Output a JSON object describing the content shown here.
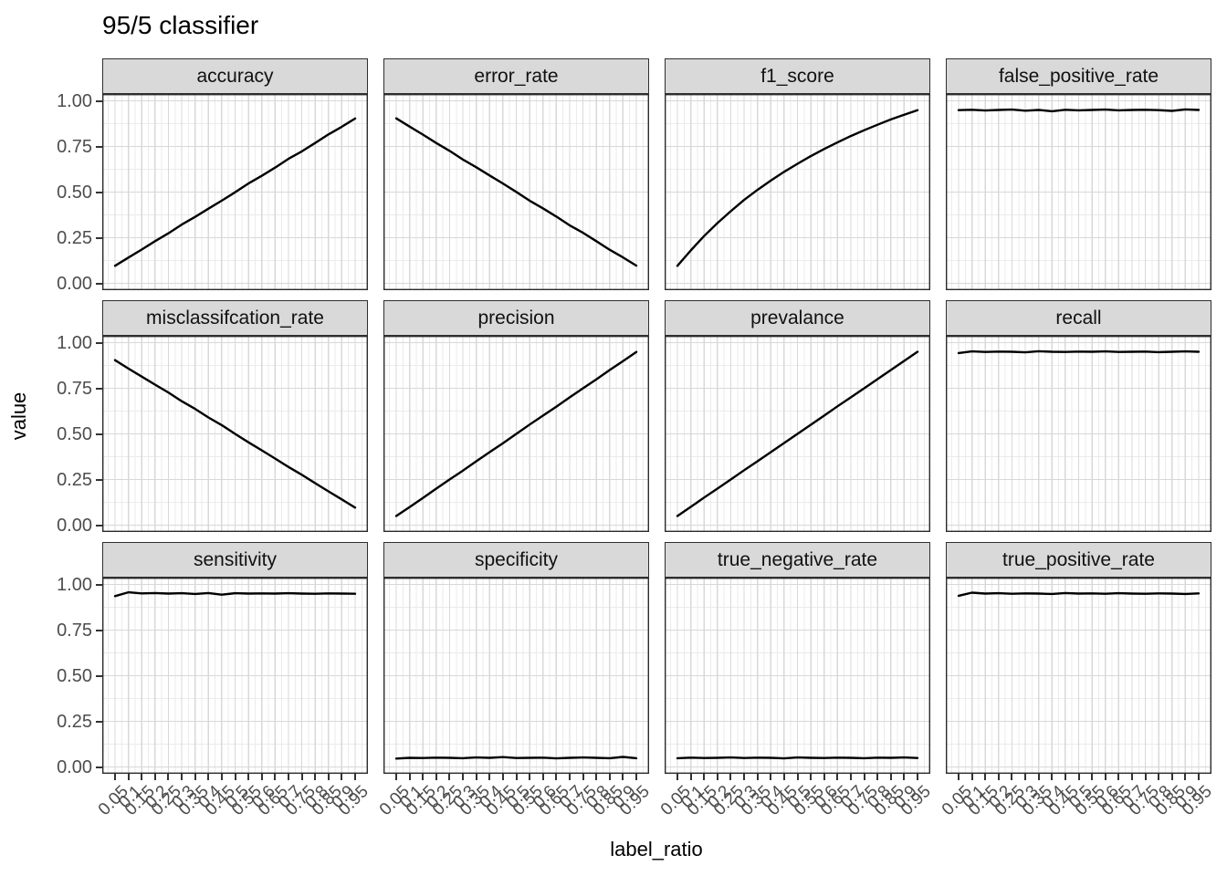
{
  "title": "95/5 classifier",
  "axes": {
    "x_label": "label_ratio",
    "y_label": "value",
    "y_tick_labels": [
      "1.00",
      "0.75",
      "0.50",
      "0.25",
      "0.00"
    ],
    "x_tick_labels": [
      "0.05",
      "0.1",
      "0.15",
      "0.2",
      "0.25",
      "0.3",
      "0.35",
      "0.4",
      "0.45",
      "0.5",
      "0.55",
      "0.6",
      "0.65",
      "0.7",
      "0.75",
      "0.8",
      "0.85",
      "0.9",
      "0.95"
    ]
  },
  "colors": {
    "line": "#000000",
    "strip_fill": "#D9D9D9",
    "strip_border": "#2F2F2F",
    "panel_border": "#2B2B2B",
    "panel_background": "#FFFFFF",
    "grid_major": "#D8D8D8",
    "grid_minor": "#EBEBEB",
    "tick_mark": "#333333",
    "tick_label": "#4D4D4D"
  },
  "chart_data": {
    "type": "line",
    "layout": "facet_wrap 3 rows x 4 cols, shared axes",
    "title": "95/5 classifier",
    "xlabel": "label_ratio",
    "ylabel": "value",
    "xlim": [
      0.05,
      0.95
    ],
    "ylim": [
      0,
      1
    ],
    "grid": true,
    "legend": false,
    "y_major_ticks": [
      1.0,
      0.75,
      0.5,
      0.25,
      0.0
    ],
    "x": [
      0.05,
      0.1,
      0.15,
      0.2,
      0.25,
      0.3,
      0.35,
      0.4,
      0.45,
      0.5,
      0.55,
      0.6,
      0.65,
      0.7,
      0.75,
      0.8,
      0.85,
      0.9,
      0.95
    ],
    "facets": [
      {
        "label": "accuracy",
        "values": [
          0.096,
          0.141,
          0.185,
          0.231,
          0.274,
          0.322,
          0.364,
          0.409,
          0.453,
          0.499,
          0.547,
          0.589,
          0.634,
          0.682,
          0.723,
          0.769,
          0.816,
          0.858,
          0.903
        ]
      },
      {
        "label": "error_rate",
        "values": [
          0.904,
          0.859,
          0.815,
          0.769,
          0.726,
          0.678,
          0.636,
          0.591,
          0.547,
          0.501,
          0.453,
          0.411,
          0.366,
          0.318,
          0.277,
          0.231,
          0.184,
          0.142,
          0.097
        ]
      },
      {
        "label": "f1_score",
        "values": [
          0.096,
          0.18,
          0.259,
          0.33,
          0.395,
          0.457,
          0.512,
          0.563,
          0.611,
          0.655,
          0.697,
          0.736,
          0.772,
          0.807,
          0.839,
          0.869,
          0.898,
          0.924,
          0.949
        ]
      },
      {
        "label": "false_positive_rate",
        "values": [
          0.949,
          0.951,
          0.947,
          0.95,
          0.952,
          0.946,
          0.95,
          0.943,
          0.951,
          0.948,
          0.95,
          0.952,
          0.948,
          0.95,
          0.951,
          0.949,
          0.945,
          0.953,
          0.95
        ]
      },
      {
        "label": "misclassifcation_rate",
        "values": [
          0.904,
          0.858,
          0.814,
          0.77,
          0.727,
          0.679,
          0.637,
          0.59,
          0.548,
          0.5,
          0.454,
          0.41,
          0.365,
          0.319,
          0.276,
          0.23,
          0.185,
          0.141,
          0.096
        ]
      },
      {
        "label": "precision",
        "values": [
          0.05,
          0.099,
          0.149,
          0.2,
          0.25,
          0.299,
          0.35,
          0.4,
          0.449,
          0.5,
          0.551,
          0.6,
          0.649,
          0.7,
          0.75,
          0.799,
          0.85,
          0.899,
          0.949
        ]
      },
      {
        "label": "prevalance",
        "values": [
          0.05,
          0.1,
          0.151,
          0.2,
          0.25,
          0.301,
          0.35,
          0.4,
          0.45,
          0.5,
          0.55,
          0.6,
          0.651,
          0.7,
          0.75,
          0.8,
          0.85,
          0.9,
          0.95
        ]
      },
      {
        "label": "recall",
        "values": [
          0.943,
          0.952,
          0.949,
          0.951,
          0.95,
          0.947,
          0.953,
          0.95,
          0.949,
          0.951,
          0.95,
          0.952,
          0.949,
          0.95,
          0.951,
          0.948,
          0.95,
          0.952,
          0.95
        ]
      },
      {
        "label": "sensitivity",
        "values": [
          0.936,
          0.957,
          0.951,
          0.953,
          0.95,
          0.952,
          0.948,
          0.953,
          0.944,
          0.952,
          0.95,
          0.951,
          0.95,
          0.952,
          0.95,
          0.949,
          0.951,
          0.95,
          0.949
        ]
      },
      {
        "label": "specificity",
        "values": [
          0.046,
          0.05,
          0.049,
          0.051,
          0.05,
          0.048,
          0.052,
          0.05,
          0.054,
          0.049,
          0.05,
          0.051,
          0.047,
          0.05,
          0.052,
          0.05,
          0.048,
          0.055,
          0.048
        ]
      },
      {
        "label": "true_negative_rate",
        "values": [
          0.048,
          0.051,
          0.049,
          0.05,
          0.052,
          0.049,
          0.051,
          0.05,
          0.047,
          0.052,
          0.05,
          0.049,
          0.051,
          0.05,
          0.048,
          0.051,
          0.05,
          0.052,
          0.049
        ]
      },
      {
        "label": "true_positive_rate",
        "values": [
          0.938,
          0.955,
          0.95,
          0.952,
          0.949,
          0.951,
          0.95,
          0.948,
          0.953,
          0.95,
          0.951,
          0.949,
          0.952,
          0.95,
          0.949,
          0.951,
          0.95,
          0.948,
          0.951
        ]
      }
    ]
  }
}
